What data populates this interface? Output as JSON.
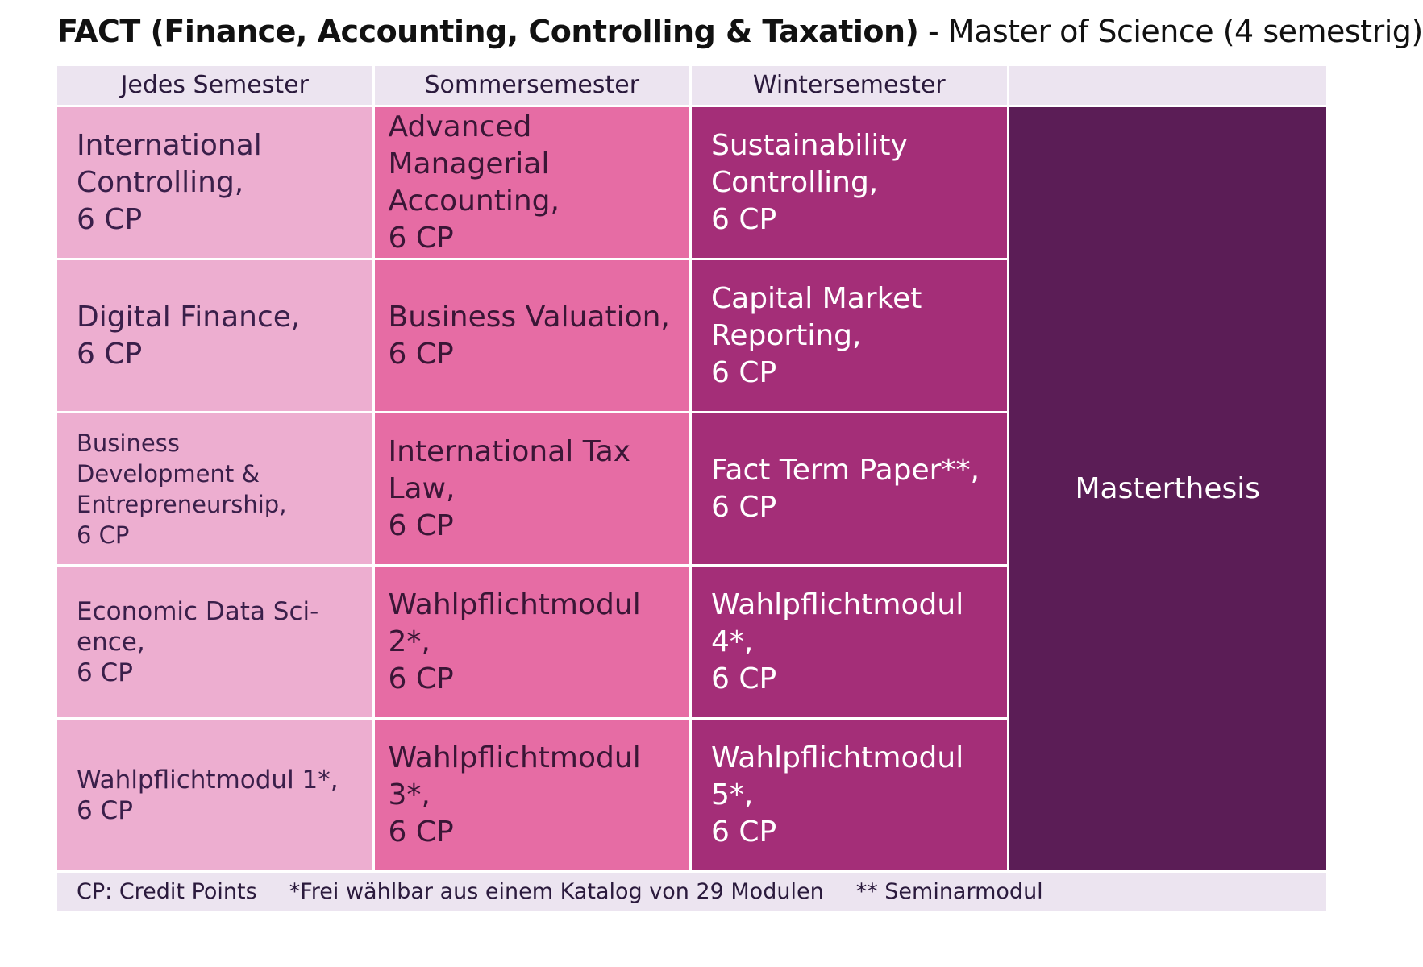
{
  "title": {
    "bold": "FACT (Finance, Accounting, Controlling & Taxation)",
    "normal": " - Master of Science (4 semestrig)"
  },
  "headers": [
    "Jedes Semester",
    "Sommersemester",
    "Wintersemester",
    ""
  ],
  "columns": {
    "jedes_semester": [
      "International\nControlling,\n6 CP",
      "Digital Finance,\n6 CP",
      "Business\nDevelopment &\nEntrepreneurship,\n6 CP",
      "Economic Data Sci-\nence,\n6 CP",
      "Wahlpflichtmodul 1*,\n6 CP"
    ],
    "sommersemester": [
      "Advanced Managerial\nAccounting,\n6 CP",
      "Business Valuation,\n6 CP",
      "International Tax\nLaw,\n6 CP",
      "Wahlpflichtmodul 2*,\n6 CP",
      "Wahlpflichtmodul 3*,\n6 CP"
    ],
    "wintersemester": [
      "Sustainability\nControlling,\n6 CP",
      "Capital Market\nReporting,\n6 CP",
      "Fact Term Paper**,\n6 CP",
      "Wahlpflichtmodul\n4*,\n6 CP",
      "Wahlpflichtmodul\n5*,\n6 CP"
    ],
    "masterthesis": "Masterthesis"
  },
  "footer": {
    "cp": "CP: Credit Points",
    "frei": "*Frei wählbar aus einem Katalog von 29 Modulen",
    "seminar": "** Seminarmodul"
  },
  "colors": {
    "header_bg": "#ece4f0",
    "col1": "#edaed0",
    "col2": "#e66ca4",
    "col3": "#a42e78",
    "col4": "#5b1d56"
  }
}
